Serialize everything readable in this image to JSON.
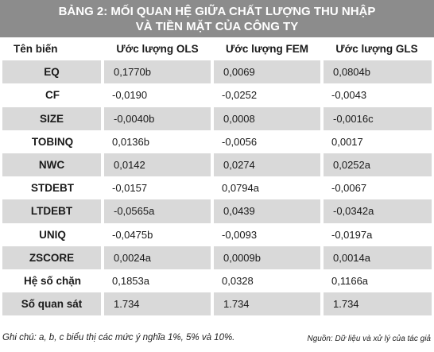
{
  "title": {
    "line1": "BẢNG 2: MỐI QUAN HỆ GIỮA CHẤT LƯỢNG THU NHẬP",
    "line2": "VÀ TIỀN MẶT CỦA CÔNG TY"
  },
  "table": {
    "headers": [
      "Tên biến",
      "Ước lượng OLS",
      "Ước lượng FEM",
      "Ước lượng GLS"
    ],
    "rows": [
      {
        "var": "EQ",
        "ols": "0,1770b",
        "fem": "0,0069",
        "gls": "0,0804b"
      },
      {
        "var": "CF",
        "ols": "-0,0190",
        "fem": "-0,0252",
        "gls": "-0,0043"
      },
      {
        "var": "SIZE",
        "ols": "-0,0040b",
        "fem": "0,0008",
        "gls": "-0,0016c"
      },
      {
        "var": "TOBINQ",
        "ols": "0,0136b",
        "fem": "-0,0056",
        "gls": "0,0017"
      },
      {
        "var": "NWC",
        "ols": "0,0142",
        "fem": "0,0274",
        "gls": "0,0252a"
      },
      {
        "var": "STDEBT",
        "ols": "-0,0157",
        "fem": "0,0794a",
        "gls": "-0,0067"
      },
      {
        "var": "LTDEBT",
        "ols": "-0,0565a",
        "fem": "0,0439",
        "gls": "-0,0342a"
      },
      {
        "var": "UNIQ",
        "ols": "-0,0475b",
        "fem": "-0,0093",
        "gls": "-0,0197a"
      },
      {
        "var": "ZSCORE",
        "ols": "0,0024a",
        "fem": "0,0009b",
        "gls": "0,0014a"
      },
      {
        "var": "Hệ số chặn",
        "ols": "0,1853a",
        "fem": "0,0328",
        "gls": "0,1166a"
      },
      {
        "var": "Số quan sát",
        "ols": "1.734",
        "fem": "1.734",
        "gls": "1.734"
      }
    ]
  },
  "footer": {
    "note": "Ghi chú: a, b, c biểu thị các mức ý nghĩa 1%, 5% và 10%.",
    "source": "Nguồn: Dữ liệu và xử lý của tác giả"
  }
}
